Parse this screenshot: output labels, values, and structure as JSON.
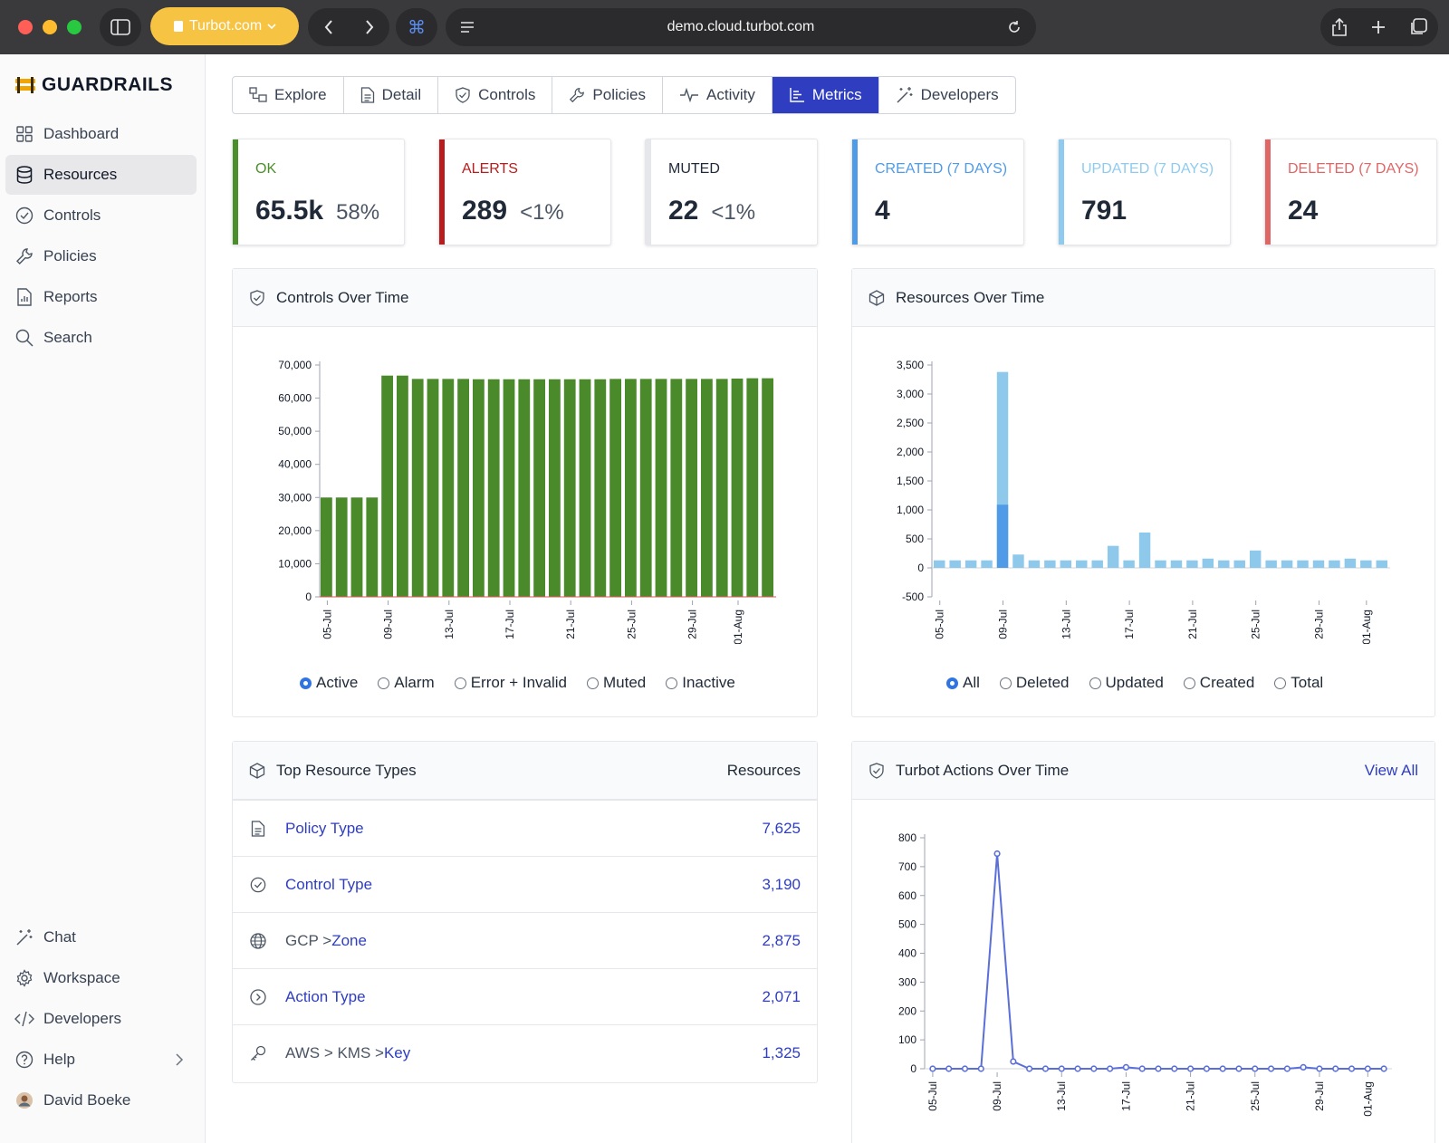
{
  "browser": {
    "site_label": "Turbot.com",
    "url": "demo.cloud.turbot.com"
  },
  "sidebar": {
    "brand": "GUARDRAILS",
    "items": [
      {
        "label": "Dashboard",
        "icon": "grid-icon"
      },
      {
        "label": "Resources",
        "icon": "database-icon",
        "active": true
      },
      {
        "label": "Controls",
        "icon": "check-circle-icon"
      },
      {
        "label": "Policies",
        "icon": "wrench-icon"
      },
      {
        "label": "Reports",
        "icon": "report-icon"
      },
      {
        "label": "Search",
        "icon": "search-icon"
      }
    ],
    "bottom_items": [
      {
        "label": "Chat",
        "icon": "wand-icon"
      },
      {
        "label": "Workspace",
        "icon": "gear-icon"
      },
      {
        "label": "Developers",
        "icon": "code-icon"
      },
      {
        "label": "Help",
        "icon": "help-icon"
      },
      {
        "label": "David Boeke",
        "icon": "avatar"
      }
    ]
  },
  "tabs": [
    {
      "label": "Explore",
      "icon": "explore-icon"
    },
    {
      "label": "Detail",
      "icon": "document-icon"
    },
    {
      "label": "Controls",
      "icon": "shield-check-icon"
    },
    {
      "label": "Policies",
      "icon": "wrench-icon"
    },
    {
      "label": "Activity",
      "icon": "activity-icon"
    },
    {
      "label": "Metrics",
      "icon": "metrics-icon",
      "active": true
    },
    {
      "label": "Developers",
      "icon": "wand-icon"
    }
  ],
  "stats": [
    {
      "label": "OK",
      "value": "65.5k",
      "pct": "58%",
      "color": "#4a8f2a"
    },
    {
      "label": "ALERTS",
      "value": "289",
      "pct": "<1%",
      "color": "#b91c1c"
    },
    {
      "label": "MUTED",
      "value": "22",
      "pct": "<1%",
      "color": "#d1d5db"
    },
    {
      "label": "CREATED (7 DAYS)",
      "value": "4",
      "pct": "",
      "color": "#4f9be8"
    },
    {
      "label": "UPDATED (7 DAYS)",
      "value": "791",
      "pct": "",
      "color": "#8fcbee"
    },
    {
      "label": "DELETED (7 DAYS)",
      "value": "24",
      "pct": "",
      "color": "#e06666"
    }
  ],
  "controls_panel": {
    "title": "Controls Over Time",
    "legend": [
      "Active",
      "Alarm",
      "Error + Invalid",
      "Muted",
      "Inactive"
    ]
  },
  "resources_panel": {
    "title": "Resources Over Time",
    "legend": [
      "All",
      "Deleted",
      "Updated",
      "Created",
      "Total"
    ]
  },
  "top_types": {
    "title": "Top Resource Types",
    "column": "Resources",
    "rows": [
      {
        "path": "",
        "name": "Policy Type",
        "count": "7,625",
        "icon": "document-icon"
      },
      {
        "path": "",
        "name": "Control Type",
        "count": "3,190",
        "icon": "check-circle-icon"
      },
      {
        "path": "GCP > ",
        "name": "Zone",
        "count": "2,875",
        "icon": "globe-icon"
      },
      {
        "path": "",
        "name": "Action Type",
        "count": "2,071",
        "icon": "play-circle-icon"
      },
      {
        "path": "AWS > KMS > ",
        "name": "Key",
        "count": "1,325",
        "icon": "key-icon"
      }
    ]
  },
  "actions_panel": {
    "title": "Turbot Actions Over Time",
    "link": "View All"
  },
  "chart_data": [
    {
      "type": "bar",
      "title": "Controls Over Time",
      "series_name": "Active",
      "color": "#4a8a2a",
      "x_tick_labels": [
        "05-Jul",
        "09-Jul",
        "13-Jul",
        "17-Jul",
        "21-Jul",
        "25-Jul",
        "29-Jul",
        "01-Aug"
      ],
      "x_tick_index": [
        0,
        4,
        8,
        12,
        16,
        20,
        24,
        27
      ],
      "values": [
        30000,
        30000,
        30000,
        30000,
        66800,
        66800,
        65800,
        65800,
        65800,
        65800,
        65700,
        65700,
        65700,
        65700,
        65700,
        65700,
        65700,
        65700,
        65700,
        65800,
        65800,
        65800,
        65800,
        65800,
        65800,
        65800,
        65800,
        65900,
        66000,
        66000
      ],
      "ylim": [
        0,
        70000
      ],
      "y_ticks": [
        "70,000",
        "60,000",
        "50,000",
        "40,000",
        "30,000",
        "20,000",
        "10,000",
        "0"
      ]
    },
    {
      "type": "bar",
      "title": "Resources Over Time",
      "color_total": "#8ec9ec",
      "color_created": "#4f9be8",
      "x_tick_labels": [
        "05-Jul",
        "09-Jul",
        "13-Jul",
        "17-Jul",
        "21-Jul",
        "25-Jul",
        "29-Jul",
        "01-Aug"
      ],
      "x_tick_index": [
        0,
        4,
        8,
        12,
        16,
        20,
        24,
        27
      ],
      "series": [
        {
          "name": "Total",
          "values": [
            130,
            130,
            130,
            130,
            3380,
            230,
            130,
            130,
            130,
            130,
            130,
            380,
            130,
            610,
            130,
            130,
            130,
            160,
            130,
            130,
            300,
            130,
            130,
            130,
            130,
            130,
            160,
            130,
            130
          ]
        },
        {
          "name": "Created",
          "values": [
            0,
            0,
            0,
            0,
            1090,
            0,
            0,
            0,
            0,
            0,
            0,
            0,
            0,
            0,
            0,
            0,
            0,
            0,
            0,
            0,
            0,
            0,
            0,
            0,
            0,
            0,
            0,
            0,
            0
          ]
        }
      ],
      "ylim": [
        -500,
        3500
      ],
      "y_ticks": [
        "3,500",
        "3,000",
        "2,500",
        "2,000",
        "1,500",
        "1,000",
        "500",
        "0",
        "-500"
      ]
    },
    {
      "type": "line",
      "title": "Turbot Actions Over Time",
      "color": "#5b6fd8",
      "x_tick_labels": [
        "05-Jul",
        "09-Jul",
        "13-Jul",
        "17-Jul",
        "21-Jul",
        "25-Jul",
        "29-Jul",
        "01-Aug"
      ],
      "x_tick_index": [
        0,
        4,
        8,
        12,
        16,
        20,
        24,
        27
      ],
      "values": [
        0,
        0,
        0,
        0,
        745,
        25,
        0,
        0,
        0,
        0,
        0,
        0,
        5,
        0,
        0,
        0,
        0,
        0,
        0,
        0,
        0,
        0,
        0,
        5,
        0,
        0,
        0,
        0,
        0
      ],
      "ylim": [
        0,
        800
      ],
      "y_ticks": [
        "800",
        "700",
        "600",
        "500",
        "400",
        "300",
        "200",
        "100",
        "0"
      ]
    }
  ]
}
